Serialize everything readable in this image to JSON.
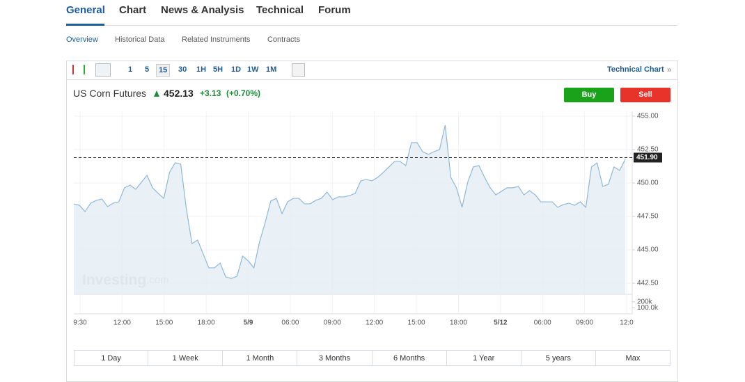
{
  "tabs": [
    "General",
    "Chart",
    "News & Analysis",
    "Technical",
    "Forum"
  ],
  "subtabs": [
    "Overview",
    "Historical Data",
    "Related Instruments",
    "Contracts"
  ],
  "intervals": [
    "1",
    "5",
    "15",
    "30",
    "1H",
    "5H",
    "1D",
    "1W",
    "1M"
  ],
  "technical_link": "Technical Chart",
  "technical_arrow": "»",
  "instrument": {
    "name": "US Corn Futures",
    "price": "452.13",
    "change": "+3.13",
    "change_pct": "(+0.70%)"
  },
  "buy": "Buy",
  "sell": "Sell",
  "watermark": [
    "Investing",
    ".com"
  ],
  "ranges": [
    "1 Day",
    "1 Week",
    "1 Month",
    "3 Months",
    "6 Months",
    "1 Year",
    "5 years",
    "Max"
  ],
  "chart_data": {
    "type": "area",
    "color": "#8fb8d8",
    "xticks": [
      "9:30",
      "12:00",
      "15:00",
      "18:00",
      "5/9",
      "06:00",
      "09:00",
      "12:00",
      "15:00",
      "18:00",
      "5/12",
      "06:00",
      "09:00",
      "12:0"
    ],
    "values": [
      448.44,
      448.33,
      447.86,
      448.49,
      448.7,
      448.8,
      448.23,
      448.49,
      448.59,
      449.64,
      449.84,
      449.53,
      450.05,
      450.57,
      449.64,
      449.22,
      448.85,
      450.78,
      451.51,
      451.41,
      448.07,
      445.47,
      445.73,
      444.69,
      443.65,
      443.65,
      444.01,
      442.97,
      442.86,
      443.02,
      444.53,
      444.17,
      443.65,
      445.57,
      447.03,
      448.65,
      448.85,
      447.71,
      448.59,
      448.85,
      448.85,
      448.44,
      448.44,
      448.7,
      448.85,
      449.32,
      448.75,
      448.96,
      448.96,
      449.06,
      449.22,
      450.16,
      450.26,
      450.16,
      450.42,
      450.78,
      451.2,
      451.61,
      451.61,
      451.3,
      453.02,
      453.02,
      452.34,
      452.14,
      452.34,
      452.5,
      454.32,
      450.42,
      449.64,
      448.18,
      450.05,
      451.2,
      451.3,
      450.42,
      449.64,
      449.11,
      449.38,
      449.64,
      449.64,
      449.74,
      449.11,
      449.43,
      449.11,
      448.59,
      448.59,
      448.59,
      448.18,
      448.39,
      448.49,
      448.33,
      448.59,
      448.18,
      451.2,
      451.51,
      449.74,
      449.9,
      451.2,
      450.94,
      451.77
    ],
    "ylim": [
      441.67,
      455.36
    ],
    "yticks": [
      {
        "value": 442.5,
        "label": "442.50"
      },
      {
        "value": 445,
        "label": "445.00"
      },
      {
        "value": 447.5,
        "label": "447.50"
      },
      {
        "value": 450,
        "label": "450.00"
      },
      {
        "value": 452.5,
        "label": "452.50"
      },
      {
        "value": 455,
        "label": "455.00"
      }
    ],
    "last_price": {
      "value": 451.9,
      "label": "451.90"
    },
    "volume_ylim": [
      0,
      325000
    ],
    "volume_ticks": [
      {
        "value": 200000,
        "label": "200k"
      },
      {
        "value": 100000,
        "label": "100.0k"
      }
    ],
    "grid": true
  }
}
